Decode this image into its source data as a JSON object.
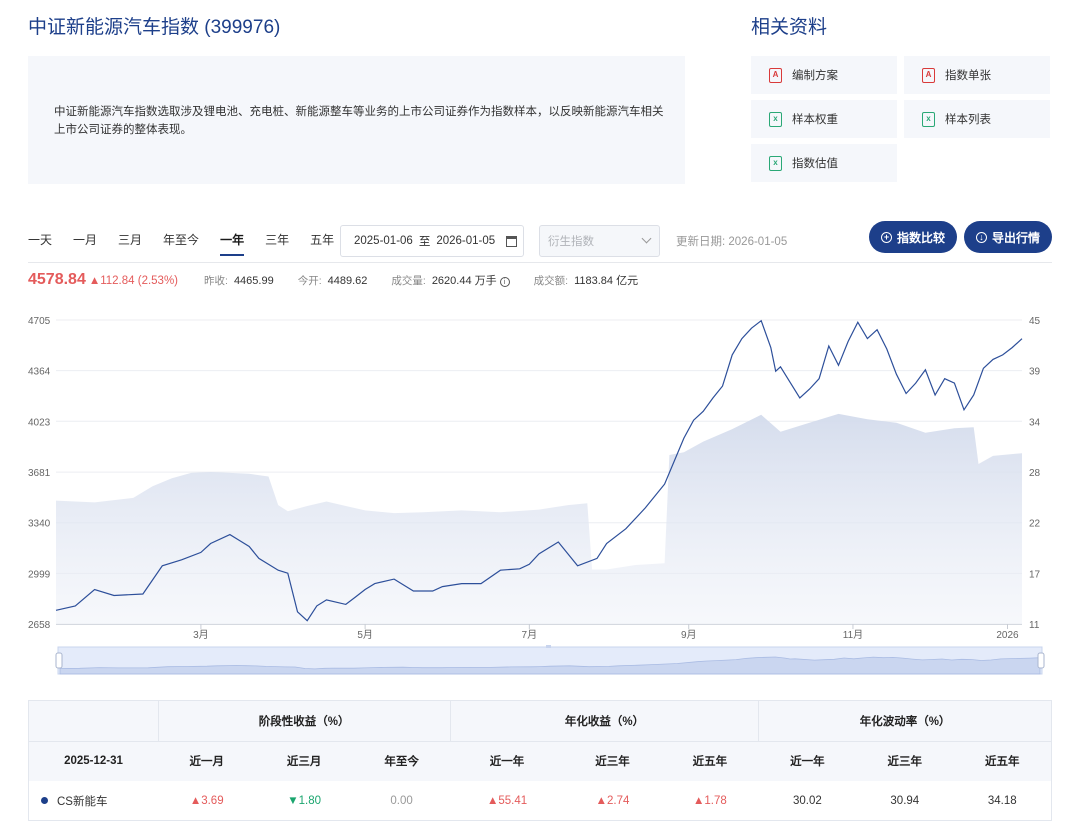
{
  "header": {
    "title": "中证新能源汽车指数 (399976)",
    "description": "中证新能源汽车指数选取涉及锂电池、充电桩、新能源整车等业务的上市公司证券作为指数样本，以反映新能源汽车相关上市公司证券的整体表现。"
  },
  "related": {
    "title": "相关资料",
    "items": [
      {
        "label": "编制方案",
        "icon": "pdf-icon",
        "glyph": "A"
      },
      {
        "label": "指数单张",
        "icon": "pdf-icon",
        "glyph": "A"
      },
      {
        "label": "样本权重",
        "icon": "excel-icon",
        "glyph": "x"
      },
      {
        "label": "样本列表",
        "icon": "excel-icon",
        "glyph": "x"
      },
      {
        "label": "指数估值",
        "icon": "excel-icon",
        "glyph": "x"
      }
    ]
  },
  "toolbar": {
    "tabs": [
      "一天",
      "一月",
      "三月",
      "年至今",
      "一年",
      "三年",
      "五年"
    ],
    "active_tab": "一年",
    "date_start": "2025-01-06",
    "date_sep": "至",
    "date_end": "2026-01-05",
    "derived_placeholder": "衍生指数",
    "update_label": "更新日期: 2026-01-05",
    "compare_button": "指数比较",
    "export_button": "导出行情",
    "colors": {
      "brand": "#1d3f8a",
      "up": "#e45b5b",
      "down": "#1aa56e"
    }
  },
  "quote": {
    "price": "4578.84",
    "change": "▲112.84 (2.53%)",
    "prev_close_label": "昨收:",
    "prev_close": "4465.99",
    "open_label": "今开:",
    "open": "4489.62",
    "volume_label": "成交量:",
    "volume": "2620.44 万手",
    "amount_label": "成交额:",
    "amount": "1183.84 亿元"
  },
  "chart_data": {
    "type": "line",
    "x_ticks": [
      "3月",
      "5月",
      "7月",
      "9月",
      "11月",
      "2026"
    ],
    "y_left_ticks": [
      2658,
      2999,
      3340,
      3681,
      4023,
      4364,
      4705
    ],
    "y_right_ticks": [
      11,
      17,
      22,
      28,
      34,
      39,
      45
    ],
    "ylim_left": [
      2658,
      4705
    ],
    "ylim_right": [
      11,
      45
    ],
    "series": [
      {
        "style": "line",
        "axis": "left",
        "color": "#2d4f9a",
        "t": [
          0.0,
          0.02,
          0.04,
          0.06,
          0.09,
          0.11,
          0.13,
          0.15,
          0.16,
          0.18,
          0.19,
          0.2,
          0.21,
          0.23,
          0.24,
          0.25,
          0.26,
          0.27,
          0.28,
          0.3,
          0.31,
          0.32,
          0.33,
          0.35,
          0.36,
          0.37,
          0.39,
          0.4,
          0.42,
          0.44,
          0.46,
          0.48,
          0.49,
          0.5,
          0.52,
          0.54,
          0.56,
          0.57,
          0.59,
          0.61,
          0.63,
          0.65,
          0.66,
          0.67,
          0.68,
          0.69,
          0.7,
          0.71,
          0.72,
          0.73,
          0.74,
          0.745,
          0.75,
          0.77,
          0.78,
          0.79,
          0.8,
          0.81,
          0.82,
          0.83,
          0.84,
          0.85,
          0.86,
          0.87,
          0.88,
          0.89,
          0.9,
          0.91,
          0.92,
          0.93,
          0.94,
          0.95,
          0.96,
          0.97,
          0.98,
          0.99,
          1.0
        ],
        "values": [
          2750,
          2780,
          2890,
          2850,
          2860,
          3050,
          3090,
          3140,
          3200,
          3260,
          3220,
          3180,
          3100,
          3020,
          3000,
          2740,
          2680,
          2780,
          2820,
          2790,
          2840,
          2890,
          2930,
          2960,
          2920,
          2880,
          2880,
          2910,
          2930,
          2930,
          3020,
          3030,
          3060,
          3130,
          3210,
          3050,
          3100,
          3200,
          3300,
          3440,
          3600,
          3910,
          4030,
          4090,
          4180,
          4260,
          4470,
          4580,
          4650,
          4700,
          4520,
          4360,
          4390,
          4180,
          4240,
          4310,
          4530,
          4400,
          4560,
          4690,
          4580,
          4640,
          4510,
          4340,
          4210,
          4280,
          4370,
          4200,
          4310,
          4280,
          4100,
          4200,
          4380,
          4440,
          4470,
          4520,
          4578.84
        ]
      },
      {
        "style": "area",
        "axis": "right",
        "color": "#c9d3e8",
        "t": [
          0.0,
          0.04,
          0.08,
          0.1,
          0.12,
          0.14,
          0.16,
          0.18,
          0.2,
          0.22,
          0.23,
          0.24,
          0.26,
          0.28,
          0.3,
          0.32,
          0.35,
          0.38,
          0.42,
          0.46,
          0.5,
          0.53,
          0.55,
          0.555,
          0.57,
          0.6,
          0.63,
          0.635,
          0.65,
          0.67,
          0.7,
          0.73,
          0.75,
          0.78,
          0.81,
          0.84,
          0.87,
          0.9,
          0.93,
          0.95,
          0.955,
          0.97,
          1.0
        ],
        "values": [
          24.8,
          24.6,
          25.1,
          26.4,
          27.3,
          27.9,
          28.0,
          27.9,
          27.8,
          27.5,
          24.3,
          23.6,
          24.2,
          24.7,
          24.2,
          23.7,
          23.4,
          23.5,
          23.7,
          23.5,
          23.8,
          24.3,
          24.5,
          17.1,
          17.1,
          17.6,
          17.8,
          29.9,
          30.2,
          31.4,
          32.8,
          34.4,
          32.5,
          33.5,
          34.5,
          33.9,
          33.5,
          32.4,
          32.9,
          33.0,
          28.9,
          29.8,
          30.1
        ]
      }
    ],
    "navigator": {
      "color": "#b9c8ea"
    }
  },
  "performance": {
    "groups": [
      "阶段性收益（%）",
      "年化收益（%）",
      "年化波动率（%）"
    ],
    "date": "2025-12-31",
    "headers": [
      "近一月",
      "近三月",
      "年至今",
      "近一年",
      "近三年",
      "近五年",
      "近一年",
      "近三年",
      "近五年"
    ],
    "rows": [
      {
        "name": "CS新能车",
        "cells": [
          {
            "v": "▲3.69",
            "c": "up"
          },
          {
            "v": "▼1.80",
            "c": "down"
          },
          {
            "v": "0.00",
            "c": "flat"
          },
          {
            "v": "▲55.41",
            "c": "up"
          },
          {
            "v": "▲2.74",
            "c": "up"
          },
          {
            "v": "▲1.78",
            "c": "up"
          },
          {
            "v": "30.02",
            "c": "plain"
          },
          {
            "v": "30.94",
            "c": "plain"
          },
          {
            "v": "34.18",
            "c": "plain"
          }
        ]
      }
    ]
  }
}
